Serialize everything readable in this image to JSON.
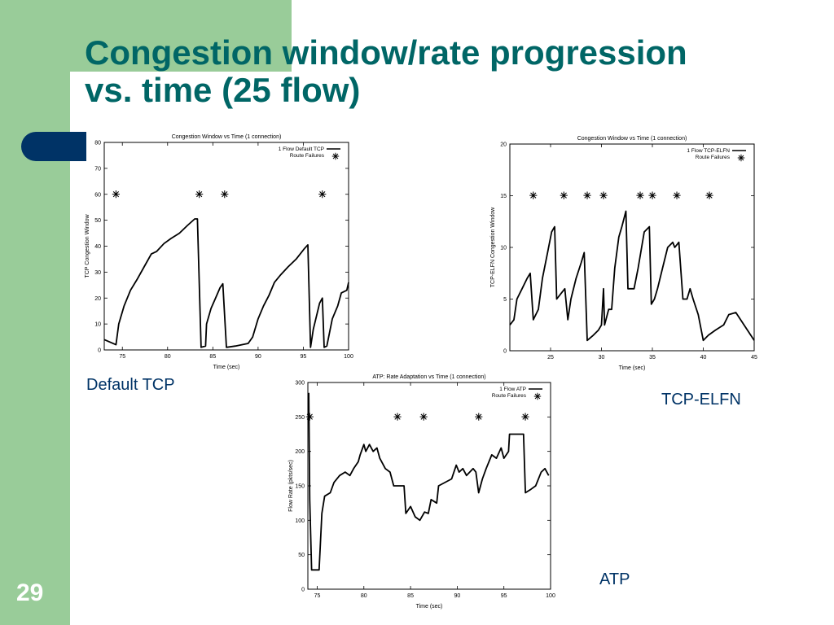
{
  "slide": {
    "title_line1": "Congestion window/rate progression",
    "title_line2": "vs. time  (25 flow)",
    "number": "29",
    "captions": {
      "default_tcp": "Default TCP",
      "tcp_elfn": "TCP-ELFN",
      "atp": "ATP"
    },
    "colors": {
      "accent_green": "#99cc99",
      "title_teal": "#006666",
      "navy": "#003366"
    }
  },
  "chart_data": [
    {
      "type": "line",
      "title": "Congestion Window vs Time (1 connection)",
      "xlabel": "Time (sec)",
      "ylabel": "TCP Congestion Window",
      "xlim": [
        73,
        100
      ],
      "ylim": [
        0,
        80
      ],
      "xticks": [
        75,
        80,
        85,
        90,
        95,
        100
      ],
      "yticks": [
        0,
        10,
        20,
        30,
        40,
        50,
        60,
        70,
        80
      ],
      "legend": [
        "1 Flow Default TCP",
        "Route Failures"
      ],
      "legend_position": "top-right",
      "series": [
        {
          "name": "1 Flow Default TCP",
          "points": [
            [
              73,
              4
            ],
            [
              74.3,
              2
            ],
            [
              74.6,
              10
            ],
            [
              75.2,
              17
            ],
            [
              75.9,
              23
            ],
            [
              76.6,
              27
            ],
            [
              77.4,
              32
            ],
            [
              78.2,
              37
            ],
            [
              78.8,
              38
            ],
            [
              79.6,
              41
            ],
            [
              80.4,
              43
            ],
            [
              81.3,
              45
            ],
            [
              82.2,
              48
            ],
            [
              83,
              50.5
            ],
            [
              83.3,
              50.5
            ],
            [
              83.7,
              1
            ],
            [
              84.2,
              1.5
            ],
            [
              84.3,
              10
            ],
            [
              84.8,
              16
            ],
            [
              85.3,
              20
            ],
            [
              85.8,
              24
            ],
            [
              86.1,
              25.5
            ],
            [
              86.5,
              1
            ],
            [
              87.5,
              1.5
            ],
            [
              88.9,
              2.5
            ],
            [
              89.4,
              5
            ],
            [
              90,
              12
            ],
            [
              90.6,
              17
            ],
            [
              91.2,
              21
            ],
            [
              91.8,
              26
            ],
            [
              92.5,
              29
            ],
            [
              93.3,
              32
            ],
            [
              94.2,
              35
            ],
            [
              95.1,
              39
            ],
            [
              95.5,
              40.5
            ],
            [
              95.8,
              1
            ],
            [
              96.1,
              8
            ],
            [
              96.8,
              18
            ],
            [
              97.1,
              20
            ],
            [
              97.3,
              1
            ],
            [
              97.6,
              1.5
            ],
            [
              98.2,
              12
            ],
            [
              98.8,
              17
            ],
            [
              99.2,
              22
            ],
            [
              99.8,
              23
            ],
            [
              100,
              26
            ]
          ]
        },
        {
          "name": "Route Failures",
          "x": [
            74.3,
            83.5,
            86.3,
            97.1
          ],
          "y": 60
        }
      ]
    },
    {
      "type": "line",
      "title": "Congestion Window vs Time (1 connection)",
      "xlabel": "Time (sec)",
      "ylabel": "TCP-ELFN Congestion Window",
      "xlim": [
        21,
        45
      ],
      "ylim": [
        0,
        20
      ],
      "xticks": [
        25,
        30,
        35,
        40,
        45
      ],
      "yticks": [
        0,
        5,
        10,
        15,
        20
      ],
      "legend": [
        "1 Flow TCP-ELFN",
        "Route Failures"
      ],
      "legend_position": "top-right",
      "series": [
        {
          "name": "1 Flow TCP-ELFN",
          "points": [
            [
              21,
              2.5
            ],
            [
              21.4,
              3
            ],
            [
              21.7,
              5
            ],
            [
              22.2,
              6
            ],
            [
              22.7,
              7
            ],
            [
              23,
              7.5
            ],
            [
              23.3,
              3
            ],
            [
              23.8,
              4
            ],
            [
              24.2,
              7
            ],
            [
              24.7,
              9.5
            ],
            [
              25.1,
              11.5
            ],
            [
              25.4,
              12
            ],
            [
              25.6,
              5
            ],
            [
              26,
              5.5
            ],
            [
              26.4,
              6
            ],
            [
              26.7,
              3
            ],
            [
              27,
              5
            ],
            [
              27.5,
              7
            ],
            [
              28,
              8.5
            ],
            [
              28.3,
              9.5
            ],
            [
              28.6,
              1
            ],
            [
              29.2,
              1.5
            ],
            [
              29.7,
              2
            ],
            [
              30,
              2.5
            ],
            [
              30.2,
              6
            ],
            [
              30.3,
              2.5
            ],
            [
              30.7,
              4
            ],
            [
              31,
              4
            ],
            [
              31.3,
              8
            ],
            [
              31.7,
              11
            ],
            [
              32,
              12
            ],
            [
              32.4,
              13.5
            ],
            [
              32.6,
              6
            ],
            [
              33.2,
              6
            ],
            [
              33.6,
              8
            ],
            [
              34.2,
              11.5
            ],
            [
              34.7,
              12
            ],
            [
              34.9,
              4.5
            ],
            [
              35.2,
              5
            ],
            [
              35.5,
              6
            ],
            [
              36,
              8
            ],
            [
              36.5,
              10
            ],
            [
              37,
              10.5
            ],
            [
              37.2,
              10
            ],
            [
              37.6,
              10.5
            ],
            [
              38,
              5
            ],
            [
              38.4,
              5
            ],
            [
              38.7,
              6
            ],
            [
              39,
              5
            ],
            [
              39.5,
              3.5
            ],
            [
              40,
              1
            ],
            [
              40.5,
              1.5
            ],
            [
              41.2,
              2
            ],
            [
              42,
              2.5
            ],
            [
              42.5,
              3.5
            ],
            [
              43.2,
              3.7
            ],
            [
              44,
              2.5
            ],
            [
              45,
              1
            ]
          ]
        },
        {
          "name": "Route Failures",
          "x": [
            23.3,
            26.3,
            28.6,
            30.2,
            33.8,
            35,
            37.4,
            40.6
          ],
          "y": 15
        }
      ]
    },
    {
      "type": "line",
      "title": "ATP: Rate Adaptation vs Time (1 connection)",
      "xlabel": "Time (sec)",
      "ylabel": "Flow Rate (pkts/sec)",
      "xlim": [
        74,
        100
      ],
      "ylim": [
        0,
        300
      ],
      "xticks": [
        75,
        80,
        85,
        90,
        95,
        100
      ],
      "yticks": [
        0,
        50,
        100,
        150,
        200,
        250,
        300
      ],
      "legend": [
        "1 Flow ATP",
        "Route Failures"
      ],
      "legend_position": "top-right",
      "series": [
        {
          "name": "1 Flow ATP",
          "points": [
            [
              74.1,
              285
            ],
            [
              74.2,
              130
            ],
            [
              74.4,
              28
            ],
            [
              75.2,
              28
            ],
            [
              75.5,
              110
            ],
            [
              75.8,
              135
            ],
            [
              76.4,
              140
            ],
            [
              76.8,
              155
            ],
            [
              77.4,
              165
            ],
            [
              78,
              170
            ],
            [
              78.5,
              165
            ],
            [
              78.9,
              175
            ],
            [
              79.4,
              185
            ],
            [
              79.6,
              195
            ],
            [
              80,
              210
            ],
            [
              80.2,
              200
            ],
            [
              80.6,
              210
            ],
            [
              81,
              200
            ],
            [
              81.4,
              205
            ],
            [
              81.7,
              190
            ],
            [
              82.3,
              175
            ],
            [
              82.8,
              170
            ],
            [
              83.2,
              150
            ],
            [
              84.3,
              150
            ],
            [
              84.5,
              110
            ],
            [
              85,
              120
            ],
            [
              85.5,
              105
            ],
            [
              86,
              100
            ],
            [
              86.5,
              112
            ],
            [
              86.9,
              110
            ],
            [
              87.2,
              130
            ],
            [
              87.8,
              125
            ],
            [
              88,
              150
            ],
            [
              89.4,
              160
            ],
            [
              89.9,
              180
            ],
            [
              90.2,
              170
            ],
            [
              90.6,
              175
            ],
            [
              91,
              165
            ],
            [
              91.7,
              175
            ],
            [
              92,
              170
            ],
            [
              92.3,
              140
            ],
            [
              92.7,
              160
            ],
            [
              93.1,
              175
            ],
            [
              93.7,
              195
            ],
            [
              94.2,
              190
            ],
            [
              94.7,
              205
            ],
            [
              95,
              190
            ],
            [
              95.5,
              200
            ],
            [
              95.6,
              225
            ],
            [
              97.1,
              225
            ],
            [
              97.3,
              140
            ],
            [
              97.9,
              145
            ],
            [
              98.4,
              150
            ],
            [
              99,
              170
            ],
            [
              99.4,
              175
            ],
            [
              99.8,
              165
            ]
          ]
        },
        {
          "name": "Route Failures",
          "x": [
            74.2,
            83.6,
            86.4,
            92.3,
            97.3
          ],
          "y": 250
        }
      ]
    }
  ]
}
